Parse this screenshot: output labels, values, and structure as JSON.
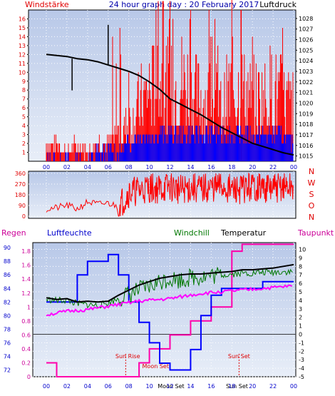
{
  "header": {
    "left_label": "Windstärke",
    "title": "24 hour graph day : 20 February 2017",
    "right_label": "Luftdruck"
  },
  "colors": {
    "plot_bg_top": "#b8c8e8",
    "plot_bg_bottom": "#e8eef8",
    "wind_red": "#ff0000",
    "wind_blue": "#0000ff",
    "pressure": "#000000",
    "humidity": "#0000ff",
    "rain": "#ff00aa",
    "temperature": "#000000",
    "windchill": "#007700",
    "dewpoint": "#ff00ff",
    "label_red": "#e00000",
    "label_blue": "#0000cc",
    "label_magenta": "#cc0099",
    "label_green": "#007700"
  },
  "x_ticks": [
    "00",
    "02",
    "04",
    "06",
    "08",
    "10",
    "12",
    "14",
    "16",
    "18",
    "20",
    "22",
    "00"
  ],
  "chart_data": [
    {
      "type": "line",
      "name": "wind_and_pressure",
      "title": "24 hour graph day : 20 February 2017",
      "ylabel_left": "Windstärke",
      "ylabel_right": "Luftdruck",
      "y_left_ticks": [
        1,
        2,
        3,
        4,
        5,
        6,
        7,
        8,
        9,
        10,
        11,
        12,
        13,
        14,
        15,
        16
      ],
      "y_right_ticks": [
        1015,
        1016,
        1017,
        1018,
        1019,
        1020,
        1021,
        1022,
        1023,
        1024,
        1025,
        1026,
        1027,
        1028
      ],
      "ylim_left": [
        0,
        17
      ],
      "ylim_right": [
        1014.5,
        1028.8
      ],
      "pressure": {
        "x": [
          0,
          1,
          2,
          3,
          4,
          5,
          6,
          7,
          8,
          9,
          10,
          11,
          12,
          13,
          14,
          15,
          16,
          17,
          18,
          19,
          20,
          21,
          22,
          23,
          24
        ],
        "values": [
          1024.6,
          1024.5,
          1024.4,
          1024.2,
          1024.1,
          1023.9,
          1023.6,
          1023.3,
          1023.0,
          1022.6,
          1022.0,
          1021.3,
          1020.4,
          1019.9,
          1019.4,
          1018.9,
          1018.3,
          1017.7,
          1017.2,
          1016.7,
          1016.2,
          1015.9,
          1015.6,
          1015.3,
          1015.1
        ]
      },
      "wind_gust_red": {
        "x": [
          0,
          1,
          2,
          3,
          4,
          5,
          6,
          7,
          8,
          9,
          10,
          11,
          12,
          13,
          14,
          15,
          16,
          17,
          18,
          19,
          20,
          21,
          22,
          23,
          24
        ],
        "values": [
          2,
          2,
          1,
          2,
          1,
          2,
          2,
          3,
          4,
          6,
          8,
          9,
          8,
          9,
          8,
          7,
          7,
          6,
          8,
          8,
          7,
          7,
          8,
          7,
          6
        ]
      },
      "wind_avg_blue": {
        "x": [
          0,
          1,
          2,
          3,
          4,
          5,
          6,
          7,
          8,
          9,
          10,
          11,
          12,
          13,
          14,
          15,
          16,
          17,
          18,
          19,
          20,
          21,
          22,
          23,
          24
        ],
        "values": [
          0,
          0,
          0,
          0,
          0,
          1,
          1,
          1,
          2,
          3,
          3,
          3,
          3,
          3,
          3,
          3,
          3,
          3,
          3,
          3,
          3,
          3,
          3,
          3,
          2
        ]
      }
    },
    {
      "type": "scatter",
      "name": "wind_direction",
      "y_ticks": [
        0,
        90,
        180,
        270,
        360
      ],
      "ylim": [
        0,
        360
      ],
      "right_labels": [
        "N",
        "W",
        "S",
        "O",
        "N"
      ],
      "x": [
        0,
        1,
        2,
        3,
        4,
        5,
        6,
        7,
        8,
        9,
        10,
        11,
        12,
        13,
        14,
        15,
        16,
        17,
        18,
        19,
        20,
        21,
        22,
        23,
        24
      ],
      "values": [
        60,
        70,
        90,
        60,
        120,
        100,
        110,
        80,
        200,
        220,
        240,
        230,
        250,
        220,
        240,
        230,
        240,
        250,
        220,
        230,
        250,
        240,
        230,
        250,
        240
      ]
    },
    {
      "type": "line",
      "name": "climate",
      "legend": [
        "Regen",
        "Luftfeuchte",
        "Windchill",
        "Temperatur",
        "Taupunkt"
      ],
      "y_rain_ticks": [
        0,
        0.2,
        0.4,
        0.6,
        0.8,
        1,
        1.2,
        1.4,
        1.6,
        1.8
      ],
      "y_humidity_ticks": [
        72,
        74,
        76,
        78,
        80,
        82,
        84,
        86,
        88,
        90
      ],
      "y_temp_ticks": [
        -5,
        -4,
        -3,
        -2,
        -1,
        0,
        1,
        2,
        3,
        4,
        5,
        6,
        7,
        8,
        9,
        10
      ],
      "ylim_temp": [
        -5,
        10.8
      ],
      "temperature": {
        "x": [
          0,
          1,
          2,
          3,
          4,
          5,
          6,
          7,
          8,
          9,
          10,
          11,
          12,
          13,
          14,
          15,
          16,
          17,
          18,
          19,
          20,
          21,
          22,
          23,
          24
        ],
        "values": [
          4.3,
          4.1,
          4.2,
          3.8,
          3.9,
          3.8,
          3.9,
          4.6,
          5.2,
          5.8,
          6.2,
          6.6,
          6.8,
          7.0,
          7.1,
          7.1,
          7.2,
          7.3,
          7.4,
          7.6,
          7.6,
          7.7,
          7.8,
          8.0,
          8.2
        ]
      },
      "windchill": {
        "x": [
          0,
          1,
          2,
          3,
          4,
          5,
          6,
          7,
          8,
          9,
          10,
          11,
          12,
          13,
          14,
          15,
          16,
          17,
          18,
          19,
          20,
          21,
          22,
          23,
          24
        ],
        "values": [
          4.1,
          4.0,
          4.0,
          3.6,
          3.5,
          3.4,
          3.7,
          4.2,
          4.7,
          5.2,
          5.6,
          6.2,
          6.6,
          6.4,
          6.7,
          6.8,
          6.9,
          7.0,
          7.1,
          7.2,
          7.2,
          7.3,
          7.3,
          7.4,
          7.3
        ]
      },
      "dewpoint": {
        "x": [
          0,
          1,
          2,
          3,
          4,
          5,
          6,
          7,
          8,
          9,
          10,
          11,
          12,
          13,
          14,
          15,
          16,
          17,
          18,
          19,
          20,
          21,
          22,
          23,
          24
        ],
        "values": [
          2.3,
          2.5,
          2.7,
          2.8,
          2.9,
          3.1,
          3.3,
          3.5,
          3.7,
          3.9,
          4.0,
          4.1,
          4.2,
          4.4,
          4.6,
          4.8,
          4.9,
          5.0,
          5.1,
          5.2,
          5.3,
          5.4,
          5.5,
          5.6,
          5.7
        ]
      },
      "humidity": {
        "x": [
          0,
          1,
          2,
          3,
          4,
          5,
          6,
          7,
          8,
          9,
          10,
          11,
          12,
          13,
          14,
          15,
          16,
          17,
          18,
          19,
          20,
          21,
          22,
          23,
          24
        ],
        "values": [
          82,
          82,
          82,
          86,
          88,
          88,
          89,
          86,
          82,
          79,
          76,
          73,
          72,
          72,
          75,
          80,
          83,
          84,
          84,
          84,
          84,
          85,
          85,
          85,
          85
        ]
      },
      "rain_cumulative": {
        "x": [
          0,
          1,
          2,
          3,
          4,
          5,
          6,
          7,
          8,
          9,
          10,
          11,
          12,
          13,
          14,
          15,
          16,
          17,
          18,
          19,
          20,
          21,
          22,
          23,
          24
        ],
        "values": [
          0.2,
          0.0,
          0.0,
          0.0,
          0.0,
          0.0,
          0.0,
          0.0,
          0.0,
          0.2,
          0.4,
          0.4,
          0.6,
          0.6,
          0.8,
          0.8,
          1.0,
          1.0,
          1.8,
          1.9,
          1.9,
          1.9,
          1.9,
          1.9,
          1.9
        ]
      },
      "annotations": [
        "Sun Rise",
        "Moon Set",
        "Sun Set",
        "Moon Set",
        "Sun Set"
      ]
    }
  ]
}
